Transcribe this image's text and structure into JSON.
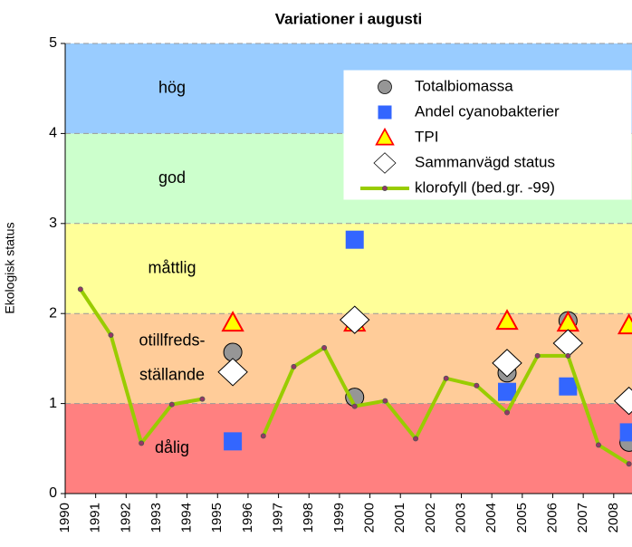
{
  "chart_data": {
    "type": "line",
    "title": "Variationer i augusti",
    "y_label": "Ekologisk status",
    "xlim": [
      1990,
      2008.6
    ],
    "xticks": [
      1990,
      1991,
      1992,
      1993,
      1994,
      1995,
      1996,
      1997,
      1998,
      1999,
      2000,
      2001,
      2002,
      2003,
      2004,
      2005,
      2006,
      2007,
      2008
    ],
    "ylim": [
      0,
      5
    ],
    "yticks": [
      0,
      1,
      2,
      3,
      4,
      5
    ],
    "grid": true,
    "legend": "upper right",
    "bands": [
      {
        "label": [
          "dålig"
        ],
        "from": 0,
        "to": 1,
        "color": "#ff8080"
      },
      {
        "label": [
          "otillfreds-",
          "ställande"
        ],
        "from": 1,
        "to": 2,
        "color": "#ffcc99"
      },
      {
        "label": [
          "måttlig"
        ],
        "from": 2,
        "to": 3,
        "color": "#ffff99"
      },
      {
        "label": [
          "god"
        ],
        "from": 3,
        "to": 4,
        "color": "#ccffcc"
      },
      {
        "label": [
          "hög"
        ],
        "from": 4,
        "to": 5,
        "color": "#99ccff"
      }
    ],
    "series": [
      {
        "name": "Totalbiomassa",
        "marker": "circle",
        "color": "#969696",
        "x": [
          1995.5,
          1999.5,
          2004.5,
          2006.5,
          2008.5
        ],
        "values": [
          1.57,
          1.07,
          1.34,
          1.92,
          0.57
        ]
      },
      {
        "name": "Andel cyanobakterier",
        "marker": "square",
        "color": "#3366ff",
        "x": [
          1995.5,
          1999.5,
          2004.5,
          2006.5,
          2008.5
        ],
        "values": [
          0.58,
          2.82,
          1.13,
          1.19,
          0.68
        ]
      },
      {
        "name": "TPI",
        "marker": "triangle",
        "color": "#ffff00",
        "x": [
          1995.5,
          1999.5,
          2004.5,
          2006.5,
          2008.5
        ],
        "values": [
          1.9,
          1.9,
          1.92,
          1.9,
          1.87
        ]
      },
      {
        "name": "Sammanvägd status",
        "marker": "diamond",
        "color": "#ffffff",
        "x": [
          1995.5,
          1999.5,
          2004.5,
          2006.5,
          2008.5
        ],
        "values": [
          1.35,
          1.93,
          1.45,
          1.67,
          1.03
        ]
      },
      {
        "name": "klorofyll (bed.gr. -99)",
        "marker": "line",
        "color": "#99cc00",
        "x": [
          1990.5,
          1991.5,
          1992.5,
          1993.5,
          1994.5,
          1995.5,
          1996.5,
          1997.5,
          1998.5,
          1999.5,
          2000.5,
          2001.5,
          2002.5,
          2003.5,
          2004.5,
          2005.5,
          2006.5,
          2007.5,
          2008.5
        ],
        "values": [
          2.27,
          1.76,
          0.56,
          0.99,
          1.05,
          null,
          0.64,
          1.41,
          1.62,
          0.97,
          1.03,
          0.61,
          1.28,
          1.2,
          0.9,
          1.53,
          1.53,
          0.54,
          0.33
        ]
      }
    ]
  }
}
